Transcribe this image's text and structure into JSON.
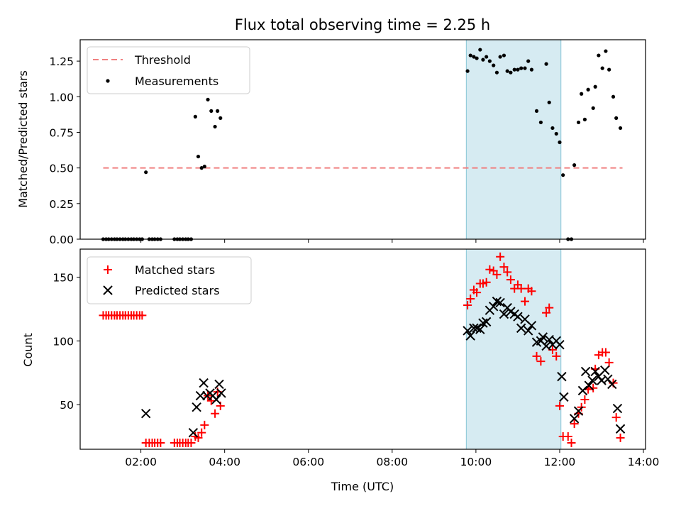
{
  "chart_data": [
    {
      "type": "scatter",
      "title": "Flux total observing time = 2.25 h",
      "xlabel": "",
      "ylabel": "Matched/Predicted stars",
      "xlim": [
        0.55,
        14.05
      ],
      "ylim": [
        0.0,
        1.4
      ],
      "yticks": [
        0.0,
        0.25,
        0.5,
        0.75,
        1.0,
        1.25
      ],
      "ytick_labels": [
        "0.00",
        "0.25",
        "0.50",
        "0.75",
        "1.00",
        "1.25"
      ],
      "shaded_interval": [
        9.77,
        12.03
      ],
      "threshold": {
        "name": "Threshold",
        "value": 0.5,
        "x_range": [
          1.1,
          13.5
        ]
      },
      "legend": [
        "Threshold",
        "Measurements"
      ],
      "legend_position": "upper-left",
      "series": [
        {
          "name": "Measurements",
          "marker": "dot",
          "color": "#000000",
          "points": [
            [
              1.1,
              0
            ],
            [
              1.17,
              0
            ],
            [
              1.23,
              0
            ],
            [
              1.3,
              0
            ],
            [
              1.37,
              0
            ],
            [
              1.43,
              0
            ],
            [
              1.5,
              0
            ],
            [
              1.57,
              0
            ],
            [
              1.63,
              0
            ],
            [
              1.7,
              0
            ],
            [
              1.77,
              0
            ],
            [
              1.83,
              0
            ],
            [
              1.9,
              0
            ],
            [
              1.97,
              0
            ],
            [
              2.03,
              0
            ],
            [
              2.12,
              0.47
            ],
            [
              2.2,
              0
            ],
            [
              2.27,
              0
            ],
            [
              2.33,
              0
            ],
            [
              2.4,
              0
            ],
            [
              2.47,
              0
            ],
            [
              2.8,
              0
            ],
            [
              2.87,
              0
            ],
            [
              2.93,
              0
            ],
            [
              3.0,
              0
            ],
            [
              3.07,
              0
            ],
            [
              3.13,
              0
            ],
            [
              3.2,
              0
            ],
            [
              3.3,
              0.86
            ],
            [
              3.37,
              0.58
            ],
            [
              3.45,
              0.5
            ],
            [
              3.52,
              0.51
            ],
            [
              3.6,
              0.98
            ],
            [
              3.68,
              0.9
            ],
            [
              3.77,
              0.79
            ],
            [
              3.83,
              0.9
            ],
            [
              3.9,
              0.85
            ],
            [
              9.8,
              1.18
            ],
            [
              9.87,
              1.29
            ],
            [
              9.95,
              1.28
            ],
            [
              10.02,
              1.27
            ],
            [
              10.1,
              1.33
            ],
            [
              10.17,
              1.26
            ],
            [
              10.25,
              1.28
            ],
            [
              10.33,
              1.25
            ],
            [
              10.42,
              1.22
            ],
            [
              10.5,
              1.17
            ],
            [
              10.58,
              1.28
            ],
            [
              10.67,
              1.29
            ],
            [
              10.75,
              1.18
            ],
            [
              10.83,
              1.17
            ],
            [
              10.92,
              1.19
            ],
            [
              11.0,
              1.19
            ],
            [
              11.08,
              1.2
            ],
            [
              11.17,
              1.2
            ],
            [
              11.25,
              1.25
            ],
            [
              11.33,
              1.19
            ],
            [
              11.45,
              0.9
            ],
            [
              11.55,
              0.82
            ],
            [
              11.68,
              1.23
            ],
            [
              11.75,
              0.96
            ],
            [
              11.83,
              0.78
            ],
            [
              11.92,
              0.74
            ],
            [
              12.0,
              0.68
            ],
            [
              12.08,
              0.45
            ],
            [
              12.2,
              0
            ],
            [
              12.28,
              0
            ],
            [
              12.35,
              0.52
            ],
            [
              12.45,
              0.82
            ],
            [
              12.52,
              1.02
            ],
            [
              12.6,
              0.84
            ],
            [
              12.68,
              1.05
            ],
            [
              12.8,
              0.92
            ],
            [
              12.85,
              1.07
            ],
            [
              12.93,
              1.29
            ],
            [
              13.02,
              1.2
            ],
            [
              13.1,
              1.32
            ],
            [
              13.18,
              1.19
            ],
            [
              13.28,
              1.0
            ],
            [
              13.35,
              0.85
            ],
            [
              13.45,
              0.78
            ]
          ]
        }
      ]
    },
    {
      "type": "scatter",
      "title": "",
      "xlabel": "Time (UTC)",
      "ylabel": "Count",
      "xlim": [
        0.55,
        14.05
      ],
      "ylim": [
        15,
        172
      ],
      "yticks": [
        50,
        100,
        150
      ],
      "ytick_labels": [
        "50",
        "100",
        "150"
      ],
      "xticks": [
        2,
        4,
        6,
        8,
        10,
        12,
        14
      ],
      "xtick_labels": [
        "02:00",
        "04:00",
        "06:00",
        "08:00",
        "10:00",
        "12:00",
        "14:00"
      ],
      "shaded_interval": [
        9.77,
        12.03
      ],
      "legend": [
        "Matched stars",
        "Predicted stars"
      ],
      "legend_position": "upper-left",
      "series": [
        {
          "name": "Matched stars",
          "marker": "plus",
          "color": "#ff0000",
          "points": [
            [
              1.1,
              120
            ],
            [
              1.17,
              120
            ],
            [
              1.23,
              120
            ],
            [
              1.3,
              120
            ],
            [
              1.37,
              120
            ],
            [
              1.43,
              120
            ],
            [
              1.5,
              120
            ],
            [
              1.57,
              120
            ],
            [
              1.63,
              120
            ],
            [
              1.7,
              120
            ],
            [
              1.77,
              120
            ],
            [
              1.83,
              120
            ],
            [
              1.9,
              120
            ],
            [
              1.97,
              120
            ],
            [
              2.03,
              120
            ],
            [
              2.12,
              20
            ],
            [
              2.2,
              20
            ],
            [
              2.27,
              20
            ],
            [
              2.33,
              20
            ],
            [
              2.4,
              20
            ],
            [
              2.47,
              20
            ],
            [
              2.8,
              20
            ],
            [
              2.87,
              20
            ],
            [
              2.93,
              20
            ],
            [
              3.0,
              20
            ],
            [
              3.07,
              20
            ],
            [
              3.13,
              20
            ],
            [
              3.2,
              20
            ],
            [
              3.3,
              25
            ],
            [
              3.37,
              24
            ],
            [
              3.45,
              28
            ],
            [
              3.52,
              34
            ],
            [
              3.6,
              57
            ],
            [
              3.68,
              53
            ],
            [
              3.77,
              43
            ],
            [
              3.83,
              60
            ],
            [
              3.9,
              49
            ],
            [
              9.8,
              128
            ],
            [
              9.87,
              133
            ],
            [
              9.95,
              140
            ],
            [
              10.02,
              138
            ],
            [
              10.1,
              145
            ],
            [
              10.17,
              145
            ],
            [
              10.25,
              146
            ],
            [
              10.33,
              156
            ],
            [
              10.42,
              155
            ],
            [
              10.5,
              152
            ],
            [
              10.58,
              166
            ],
            [
              10.67,
              158
            ],
            [
              10.75,
              154
            ],
            [
              10.83,
              148
            ],
            [
              10.92,
              141
            ],
            [
              11.0,
              144
            ],
            [
              11.08,
              141
            ],
            [
              11.17,
              131
            ],
            [
              11.25,
              141
            ],
            [
              11.33,
              139
            ],
            [
              11.45,
              88
            ],
            [
              11.55,
              84
            ],
            [
              11.68,
              122
            ],
            [
              11.75,
              126
            ],
            [
              11.83,
              93
            ],
            [
              11.92,
              88
            ],
            [
              12.0,
              49
            ],
            [
              12.08,
              25
            ],
            [
              12.2,
              25
            ],
            [
              12.28,
              20
            ],
            [
              12.35,
              35
            ],
            [
              12.45,
              43
            ],
            [
              12.52,
              48
            ],
            [
              12.6,
              54
            ],
            [
              12.68,
              62
            ],
            [
              12.8,
              63
            ],
            [
              12.85,
              78
            ],
            [
              12.93,
              89
            ],
            [
              13.02,
              91
            ],
            [
              13.1,
              91
            ],
            [
              13.18,
              83
            ],
            [
              13.28,
              67
            ],
            [
              13.35,
              40
            ],
            [
              13.45,
              24
            ]
          ]
        },
        {
          "name": "Predicted stars",
          "marker": "x",
          "color": "#000000",
          "points": [
            [
              2.12,
              43
            ],
            [
              3.25,
              28
            ],
            [
              3.33,
              48
            ],
            [
              3.42,
              57
            ],
            [
              3.5,
              67
            ],
            [
              3.58,
              57
            ],
            [
              3.65,
              59
            ],
            [
              3.72,
              57
            ],
            [
              3.8,
              54
            ],
            [
              3.87,
              66
            ],
            [
              3.92,
              59
            ],
            [
              9.8,
              108
            ],
            [
              9.87,
              104
            ],
            [
              9.95,
              110
            ],
            [
              10.02,
              110
            ],
            [
              10.1,
              109
            ],
            [
              10.17,
              114
            ],
            [
              10.25,
              115
            ],
            [
              10.33,
              124
            ],
            [
              10.42,
              127
            ],
            [
              10.5,
              131
            ],
            [
              10.58,
              130
            ],
            [
              10.67,
              121
            ],
            [
              10.75,
              126
            ],
            [
              10.83,
              123
            ],
            [
              10.92,
              121
            ],
            [
              11.0,
              119
            ],
            [
              11.08,
              110
            ],
            [
              11.17,
              117
            ],
            [
              11.25,
              108
            ],
            [
              11.33,
              112
            ],
            [
              11.45,
              99
            ],
            [
              11.55,
              100
            ],
            [
              11.6,
              103
            ],
            [
              11.68,
              96
            ],
            [
              11.75,
              101
            ],
            [
              11.83,
              97
            ],
            [
              11.92,
              100
            ],
            [
              12.0,
              97
            ],
            [
              12.05,
              72
            ],
            [
              12.1,
              56
            ],
            [
              12.35,
              39
            ],
            [
              12.45,
              45
            ],
            [
              12.55,
              61
            ],
            [
              12.62,
              76
            ],
            [
              12.7,
              65
            ],
            [
              12.78,
              69
            ],
            [
              12.85,
              76
            ],
            [
              12.93,
              72
            ],
            [
              13.0,
              69
            ],
            [
              13.08,
              77
            ],
            [
              13.15,
              70
            ],
            [
              13.25,
              66
            ],
            [
              13.38,
              47
            ],
            [
              13.45,
              31
            ]
          ]
        }
      ]
    }
  ]
}
